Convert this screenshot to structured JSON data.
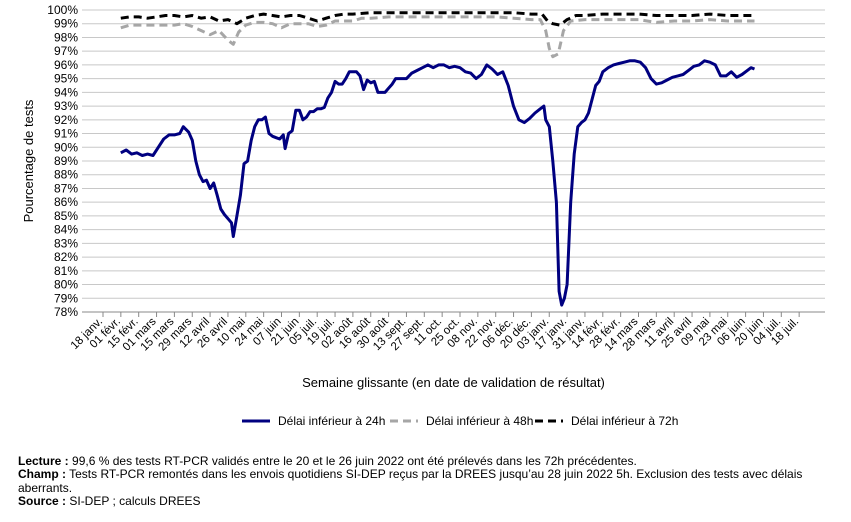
{
  "chart_data": {
    "type": "line",
    "xlabel": "Semaine glissante (en date de validation de résultat)",
    "ylabel": "Pourcentage de tests",
    "ylim": [
      78,
      100
    ],
    "y_ticks": [
      "78%",
      "79%",
      "80%",
      "81%",
      "82%",
      "83%",
      "84%",
      "85%",
      "86%",
      "87%",
      "88%",
      "89%",
      "90%",
      "91%",
      "92%",
      "93%",
      "94%",
      "95%",
      "96%",
      "97%",
      "98%",
      "99%",
      "100%"
    ],
    "x_tick_labels": [
      "18 janv.",
      "01 févr.",
      "15 févr.",
      "01 mars",
      "15 mars",
      "29 mars",
      "12 avril",
      "26 avril",
      "10 mai",
      "24 mai",
      "07 juin",
      "21 juin",
      "05 juil.",
      "19 juil.",
      "02 août",
      "16 août",
      "30 août",
      "13 sept.",
      "27 sept.",
      "11 oct.",
      "25 oct.",
      "08 nov.",
      "22 nov.",
      "06 déc.",
      "20 déc.",
      "03 janv.",
      "17 janv.",
      "31 janv.",
      "14 févr.",
      "28 févr.",
      "14 mars",
      "28 mars",
      "11 avril",
      "25 avril",
      "09 mai",
      "23 mai",
      "06 juin",
      "20 juin",
      "04 juil.",
      "18 juil."
    ],
    "grid": true,
    "legend_position": "bottom",
    "series": [
      {
        "name": "Délai inférieur à 24h",
        "color": "#000080",
        "dash": "solid",
        "points": [
          [
            1.0,
            89.6
          ],
          [
            1.3,
            89.8
          ],
          [
            1.6,
            89.5
          ],
          [
            1.9,
            89.6
          ],
          [
            2.2,
            89.4
          ],
          [
            2.5,
            89.5
          ],
          [
            2.8,
            89.4
          ],
          [
            3.1,
            90.0
          ],
          [
            3.4,
            90.6
          ],
          [
            3.7,
            90.9
          ],
          [
            4.0,
            90.9
          ],
          [
            4.3,
            91.0
          ],
          [
            4.5,
            91.5
          ],
          [
            4.8,
            91.1
          ],
          [
            5.0,
            90.5
          ],
          [
            5.2,
            89.0
          ],
          [
            5.4,
            88.0
          ],
          [
            5.6,
            87.5
          ],
          [
            5.8,
            87.6
          ],
          [
            6.0,
            87.0
          ],
          [
            6.2,
            87.4
          ],
          [
            6.4,
            86.5
          ],
          [
            6.6,
            85.5
          ],
          [
            6.8,
            85.1
          ],
          [
            7.0,
            84.8
          ],
          [
            7.2,
            84.5
          ],
          [
            7.3,
            83.5
          ],
          [
            7.5,
            85.0
          ],
          [
            7.7,
            86.5
          ],
          [
            7.9,
            88.8
          ],
          [
            8.1,
            89.0
          ],
          [
            8.3,
            90.5
          ],
          [
            8.5,
            91.5
          ],
          [
            8.7,
            92.0
          ],
          [
            8.9,
            92.0
          ],
          [
            9.1,
            92.2
          ],
          [
            9.3,
            91.0
          ],
          [
            9.5,
            90.8
          ],
          [
            9.7,
            90.7
          ],
          [
            9.9,
            90.6
          ],
          [
            10.1,
            90.9
          ],
          [
            10.2,
            89.9
          ],
          [
            10.4,
            91.0
          ],
          [
            10.6,
            91.2
          ],
          [
            10.8,
            92.7
          ],
          [
            11.0,
            92.7
          ],
          [
            11.2,
            92.0
          ],
          [
            11.4,
            92.2
          ],
          [
            11.6,
            92.6
          ],
          [
            11.8,
            92.6
          ],
          [
            12.0,
            92.8
          ],
          [
            12.2,
            92.8
          ],
          [
            12.4,
            92.9
          ],
          [
            12.6,
            93.6
          ],
          [
            12.8,
            94.0
          ],
          [
            13.0,
            94.8
          ],
          [
            13.2,
            94.6
          ],
          [
            13.4,
            94.6
          ],
          [
            13.6,
            95.0
          ],
          [
            13.8,
            95.5
          ],
          [
            14.0,
            95.5
          ],
          [
            14.2,
            95.5
          ],
          [
            14.4,
            95.2
          ],
          [
            14.6,
            94.2
          ],
          [
            14.8,
            94.9
          ],
          [
            15.0,
            94.7
          ],
          [
            15.2,
            94.8
          ],
          [
            15.4,
            94.0
          ],
          [
            15.6,
            94.0
          ],
          [
            15.8,
            94.0
          ],
          [
            16.0,
            94.3
          ],
          [
            16.2,
            94.6
          ],
          [
            16.4,
            95.0
          ],
          [
            16.6,
            95.0
          ],
          [
            16.8,
            95.0
          ],
          [
            17.0,
            95.0
          ],
          [
            17.3,
            95.4
          ],
          [
            17.6,
            95.6
          ],
          [
            17.9,
            95.8
          ],
          [
            18.2,
            96.0
          ],
          [
            18.5,
            95.8
          ],
          [
            18.8,
            96.0
          ],
          [
            19.1,
            96.0
          ],
          [
            19.4,
            95.8
          ],
          [
            19.7,
            95.9
          ],
          [
            20.0,
            95.8
          ],
          [
            20.3,
            95.5
          ],
          [
            20.6,
            95.4
          ],
          [
            20.9,
            95.0
          ],
          [
            21.2,
            95.3
          ],
          [
            21.5,
            96.0
          ],
          [
            21.8,
            95.7
          ],
          [
            22.1,
            95.3
          ],
          [
            22.4,
            95.5
          ],
          [
            22.7,
            94.5
          ],
          [
            23.0,
            93.0
          ],
          [
            23.3,
            92.0
          ],
          [
            23.6,
            91.8
          ],
          [
            23.9,
            92.1
          ],
          [
            24.2,
            92.5
          ],
          [
            24.5,
            92.8
          ],
          [
            24.7,
            93.0
          ],
          [
            24.8,
            92.0
          ],
          [
            25.0,
            91.5
          ],
          [
            25.2,
            89.0
          ],
          [
            25.4,
            86.0
          ],
          [
            25.55,
            79.5
          ],
          [
            25.7,
            78.5
          ],
          [
            25.85,
            79.0
          ],
          [
            26.0,
            80.0
          ],
          [
            26.2,
            86.0
          ],
          [
            26.4,
            89.5
          ],
          [
            26.6,
            91.5
          ],
          [
            26.8,
            91.8
          ],
          [
            27.0,
            92.0
          ],
          [
            27.2,
            92.5
          ],
          [
            27.4,
            93.5
          ],
          [
            27.6,
            94.5
          ],
          [
            27.8,
            94.8
          ],
          [
            28.0,
            95.5
          ],
          [
            28.3,
            95.8
          ],
          [
            28.6,
            96.0
          ],
          [
            28.9,
            96.1
          ],
          [
            29.2,
            96.2
          ],
          [
            29.5,
            96.3
          ],
          [
            29.8,
            96.3
          ],
          [
            30.1,
            96.2
          ],
          [
            30.4,
            95.8
          ],
          [
            30.7,
            95.0
          ],
          [
            31.0,
            94.6
          ],
          [
            31.3,
            94.7
          ],
          [
            31.6,
            94.9
          ],
          [
            31.9,
            95.1
          ],
          [
            32.2,
            95.2
          ],
          [
            32.5,
            95.3
          ],
          [
            32.8,
            95.6
          ],
          [
            33.1,
            95.9
          ],
          [
            33.4,
            96.0
          ],
          [
            33.7,
            96.3
          ],
          [
            34.0,
            96.2
          ],
          [
            34.3,
            96.0
          ],
          [
            34.6,
            95.2
          ],
          [
            34.9,
            95.2
          ],
          [
            35.2,
            95.5
          ],
          [
            35.5,
            95.1
          ],
          [
            35.8,
            95.3
          ],
          [
            36.1,
            95.6
          ],
          [
            36.3,
            95.8
          ],
          [
            36.5,
            95.7
          ]
        ]
      },
      {
        "name": "Délai inférieur à 48h",
        "color": "#a6a6a6",
        "dash": "dashed",
        "points": [
          [
            1.0,
            98.7
          ],
          [
            1.5,
            98.9
          ],
          [
            2.0,
            98.9
          ],
          [
            2.5,
            98.9
          ],
          [
            3.0,
            98.9
          ],
          [
            3.5,
            98.9
          ],
          [
            4.0,
            98.9
          ],
          [
            4.5,
            99.0
          ],
          [
            5.0,
            98.8
          ],
          [
            5.5,
            98.5
          ],
          [
            6.0,
            98.2
          ],
          [
            6.5,
            98.5
          ],
          [
            7.0,
            97.8
          ],
          [
            7.3,
            97.5
          ],
          [
            7.6,
            98.4
          ],
          [
            8.0,
            98.9
          ],
          [
            8.5,
            99.1
          ],
          [
            9.0,
            99.1
          ],
          [
            9.5,
            99.0
          ],
          [
            10.0,
            98.7
          ],
          [
            10.5,
            99.0
          ],
          [
            11.0,
            99.0
          ],
          [
            11.5,
            99.0
          ],
          [
            12.0,
            98.8
          ],
          [
            12.5,
            98.9
          ],
          [
            13.0,
            99.2
          ],
          [
            13.5,
            99.2
          ],
          [
            14.0,
            99.2
          ],
          [
            14.5,
            99.4
          ],
          [
            15.0,
            99.4
          ],
          [
            16.0,
            99.5
          ],
          [
            17.0,
            99.5
          ],
          [
            18.0,
            99.5
          ],
          [
            19.0,
            99.5
          ],
          [
            20.0,
            99.5
          ],
          [
            21.0,
            99.5
          ],
          [
            22.0,
            99.5
          ],
          [
            23.0,
            99.4
          ],
          [
            24.0,
            99.3
          ],
          [
            24.5,
            99.3
          ],
          [
            24.8,
            98.5
          ],
          [
            25.0,
            97.2
          ],
          [
            25.2,
            96.6
          ],
          [
            25.5,
            96.8
          ],
          [
            25.8,
            98.5
          ],
          [
            26.2,
            99.2
          ],
          [
            27.0,
            99.3
          ],
          [
            28.0,
            99.3
          ],
          [
            29.0,
            99.3
          ],
          [
            30.0,
            99.3
          ],
          [
            31.0,
            99.1
          ],
          [
            32.0,
            99.2
          ],
          [
            33.0,
            99.2
          ],
          [
            34.0,
            99.3
          ],
          [
            35.0,
            99.2
          ],
          [
            36.0,
            99.2
          ],
          [
            36.5,
            99.2
          ]
        ]
      },
      {
        "name": "Délai inférieur à 72h",
        "color": "#000000",
        "dash": "dashed",
        "points": [
          [
            1.0,
            99.4
          ],
          [
            1.5,
            99.5
          ],
          [
            2.0,
            99.5
          ],
          [
            2.5,
            99.4
          ],
          [
            3.0,
            99.5
          ],
          [
            3.5,
            99.6
          ],
          [
            4.0,
            99.6
          ],
          [
            4.5,
            99.5
          ],
          [
            5.0,
            99.6
          ],
          [
            5.5,
            99.4
          ],
          [
            6.0,
            99.5
          ],
          [
            6.5,
            99.2
          ],
          [
            7.0,
            99.3
          ],
          [
            7.5,
            99.0
          ],
          [
            8.0,
            99.4
          ],
          [
            8.5,
            99.6
          ],
          [
            9.0,
            99.7
          ],
          [
            9.5,
            99.6
          ],
          [
            10.0,
            99.5
          ],
          [
            10.5,
            99.6
          ],
          [
            11.0,
            99.6
          ],
          [
            11.5,
            99.4
          ],
          [
            12.0,
            99.2
          ],
          [
            12.5,
            99.4
          ],
          [
            13.0,
            99.6
          ],
          [
            13.5,
            99.7
          ],
          [
            14.0,
            99.7
          ],
          [
            15.0,
            99.8
          ],
          [
            16.0,
            99.8
          ],
          [
            17.0,
            99.8
          ],
          [
            18.0,
            99.8
          ],
          [
            19.0,
            99.8
          ],
          [
            20.0,
            99.8
          ],
          [
            21.0,
            99.8
          ],
          [
            22.0,
            99.8
          ],
          [
            23.0,
            99.8
          ],
          [
            24.0,
            99.7
          ],
          [
            24.6,
            99.7
          ],
          [
            24.9,
            99.2
          ],
          [
            25.2,
            99.0
          ],
          [
            25.6,
            98.9
          ],
          [
            26.0,
            99.3
          ],
          [
            26.5,
            99.6
          ],
          [
            27.0,
            99.6
          ],
          [
            28.0,
            99.7
          ],
          [
            29.0,
            99.7
          ],
          [
            30.0,
            99.7
          ],
          [
            31.0,
            99.6
          ],
          [
            32.0,
            99.6
          ],
          [
            33.0,
            99.6
          ],
          [
            34.0,
            99.7
          ],
          [
            35.0,
            99.6
          ],
          [
            36.0,
            99.6
          ],
          [
            36.5,
            99.6
          ]
        ]
      }
    ]
  },
  "notes": {
    "lecture_label": "Lecture :",
    "lecture_text": " 99,6 % des tests RT-PCR validés entre le 20 et le 26 juin 2022 ont été prélevés dans les 72h précédentes.",
    "champ_label": "Champ :",
    "champ_text": " Tests RT-PCR remontés dans les envois quotidiens SI-DEP reçus par la DREES jusqu’au 28 juin 2022 5h. Exclusion des tests avec délais aberrants.",
    "source_label": "Source :",
    "source_text": " SI-DEP ; calculs DREES"
  }
}
